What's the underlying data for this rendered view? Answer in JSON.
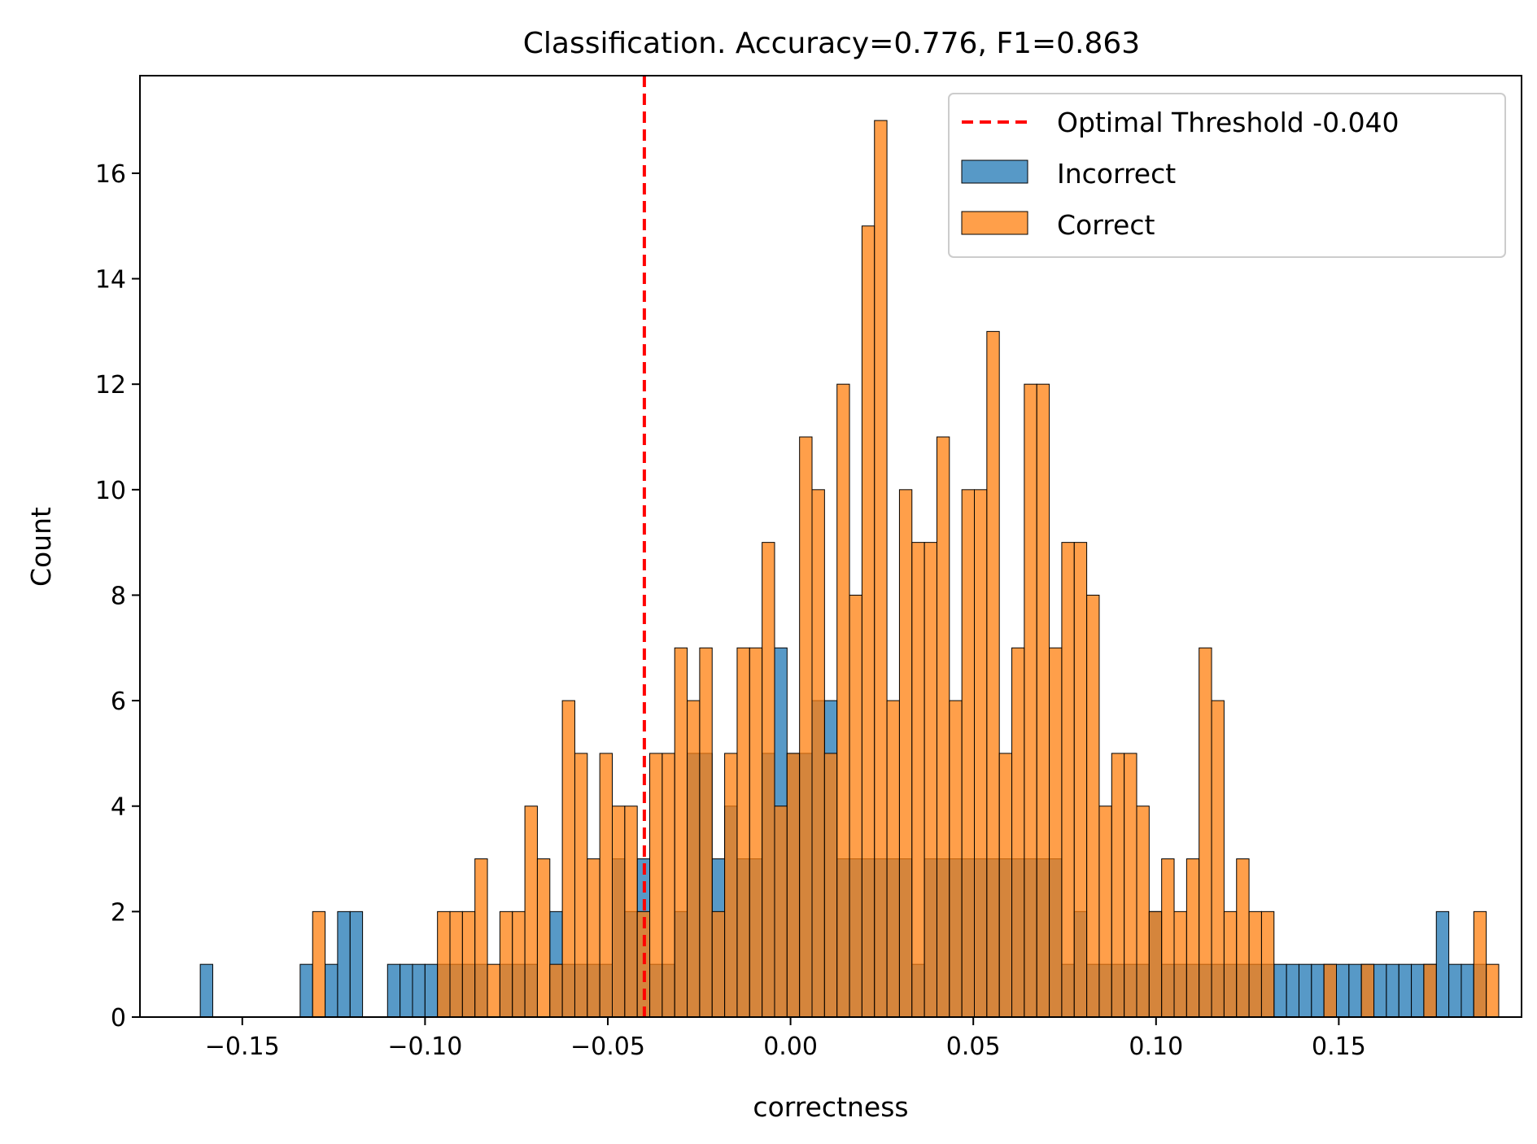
{
  "chart_data": {
    "type": "histogram",
    "title": "Classification. Accuracy=0.776, F1=0.863",
    "xlabel": "correctness",
    "ylabel": "Count",
    "xlim": [
      -0.178,
      0.2
    ],
    "ylim": [
      0,
      17.85
    ],
    "grid": false,
    "legend_position": "upper right",
    "x_ticks": [
      {
        "value": -0.15,
        "label": "−0.15"
      },
      {
        "value": -0.1,
        "label": "−0.10"
      },
      {
        "value": -0.05,
        "label": "−0.05"
      },
      {
        "value": 0.0,
        "label": "0.00"
      },
      {
        "value": 0.05,
        "label": "0.05"
      },
      {
        "value": 0.1,
        "label": "0.10"
      },
      {
        "value": 0.15,
        "label": "0.15"
      }
    ],
    "y_ticks": [
      {
        "value": 0,
        "label": "0"
      },
      {
        "value": 2,
        "label": "2"
      },
      {
        "value": 4,
        "label": "4"
      },
      {
        "value": 6,
        "label": "6"
      },
      {
        "value": 8,
        "label": "8"
      },
      {
        "value": 10,
        "label": "10"
      },
      {
        "value": 12,
        "label": "12"
      },
      {
        "value": 14,
        "label": "14"
      },
      {
        "value": 16,
        "label": "16"
      }
    ],
    "bin_start": -0.1615,
    "bin_width": 0.003416,
    "threshold": {
      "value": -0.04,
      "label": "Optimal Threshold -0.040",
      "color": "#ff0000"
    },
    "series": [
      {
        "name": "Incorrect",
        "color": "#1f77b4",
        "values": [
          1,
          0,
          0,
          0,
          0,
          0,
          0,
          0,
          1,
          0,
          1,
          2,
          2,
          0,
          0,
          1,
          1,
          1,
          1,
          1,
          1,
          1,
          1,
          0,
          1,
          1,
          1,
          0,
          2,
          1,
          1,
          1,
          1,
          3,
          2,
          3,
          1,
          1,
          2,
          5,
          5,
          3,
          4,
          3,
          3,
          5,
          7,
          5,
          5,
          6,
          6,
          3,
          3,
          3,
          3,
          3,
          3,
          1,
          3,
          3,
          3,
          3,
          3,
          3,
          3,
          3,
          3,
          3,
          3,
          1,
          2,
          1,
          1,
          1,
          1,
          1,
          2,
          1,
          1,
          1,
          1,
          1,
          1,
          1,
          1,
          1,
          1,
          1,
          1,
          1,
          1,
          1,
          1,
          1,
          1,
          1,
          1,
          1,
          1,
          2,
          1,
          1,
          1,
          0,
          0,
          0,
          0,
          0,
          0,
          0,
          0,
          0,
          0,
          0,
          0,
          0,
          0,
          0,
          0,
          0,
          0,
          0,
          0,
          0,
          0,
          0,
          0,
          0,
          0,
          0,
          0,
          0,
          0,
          0,
          0,
          0,
          0,
          0,
          0,
          0,
          0,
          0
        ]
      },
      {
        "name": "Correct",
        "color": "#ff7f0e",
        "values": [
          0,
          0,
          0,
          0,
          0,
          0,
          0,
          0,
          0,
          2,
          0,
          0,
          0,
          0,
          0,
          0,
          0,
          0,
          0,
          2,
          2,
          2,
          3,
          1,
          2,
          2,
          4,
          3,
          1,
          6,
          5,
          3,
          5,
          4,
          4,
          2,
          5,
          5,
          7,
          6,
          7,
          2,
          5,
          7,
          7,
          9,
          4,
          5,
          11,
          10,
          5,
          12,
          8,
          15,
          17,
          6,
          10,
          9,
          9,
          11,
          6,
          10,
          10,
          13,
          5,
          7,
          12,
          12,
          7,
          9,
          9,
          8,
          4,
          5,
          5,
          4,
          2,
          3,
          2,
          3,
          7,
          6,
          2,
          3,
          2,
          2,
          0,
          0,
          0,
          0,
          1,
          0,
          0,
          1,
          0,
          0,
          0,
          0,
          1,
          0,
          0,
          0,
          2,
          1,
          0,
          0,
          0,
          0,
          0,
          0,
          0,
          0,
          0,
          0,
          0,
          0,
          0,
          0,
          0,
          0,
          0,
          0,
          0,
          0,
          0,
          0,
          0,
          0,
          0,
          0,
          0,
          0,
          0,
          0,
          0,
          0,
          0,
          0,
          0,
          0,
          0
        ]
      }
    ]
  }
}
